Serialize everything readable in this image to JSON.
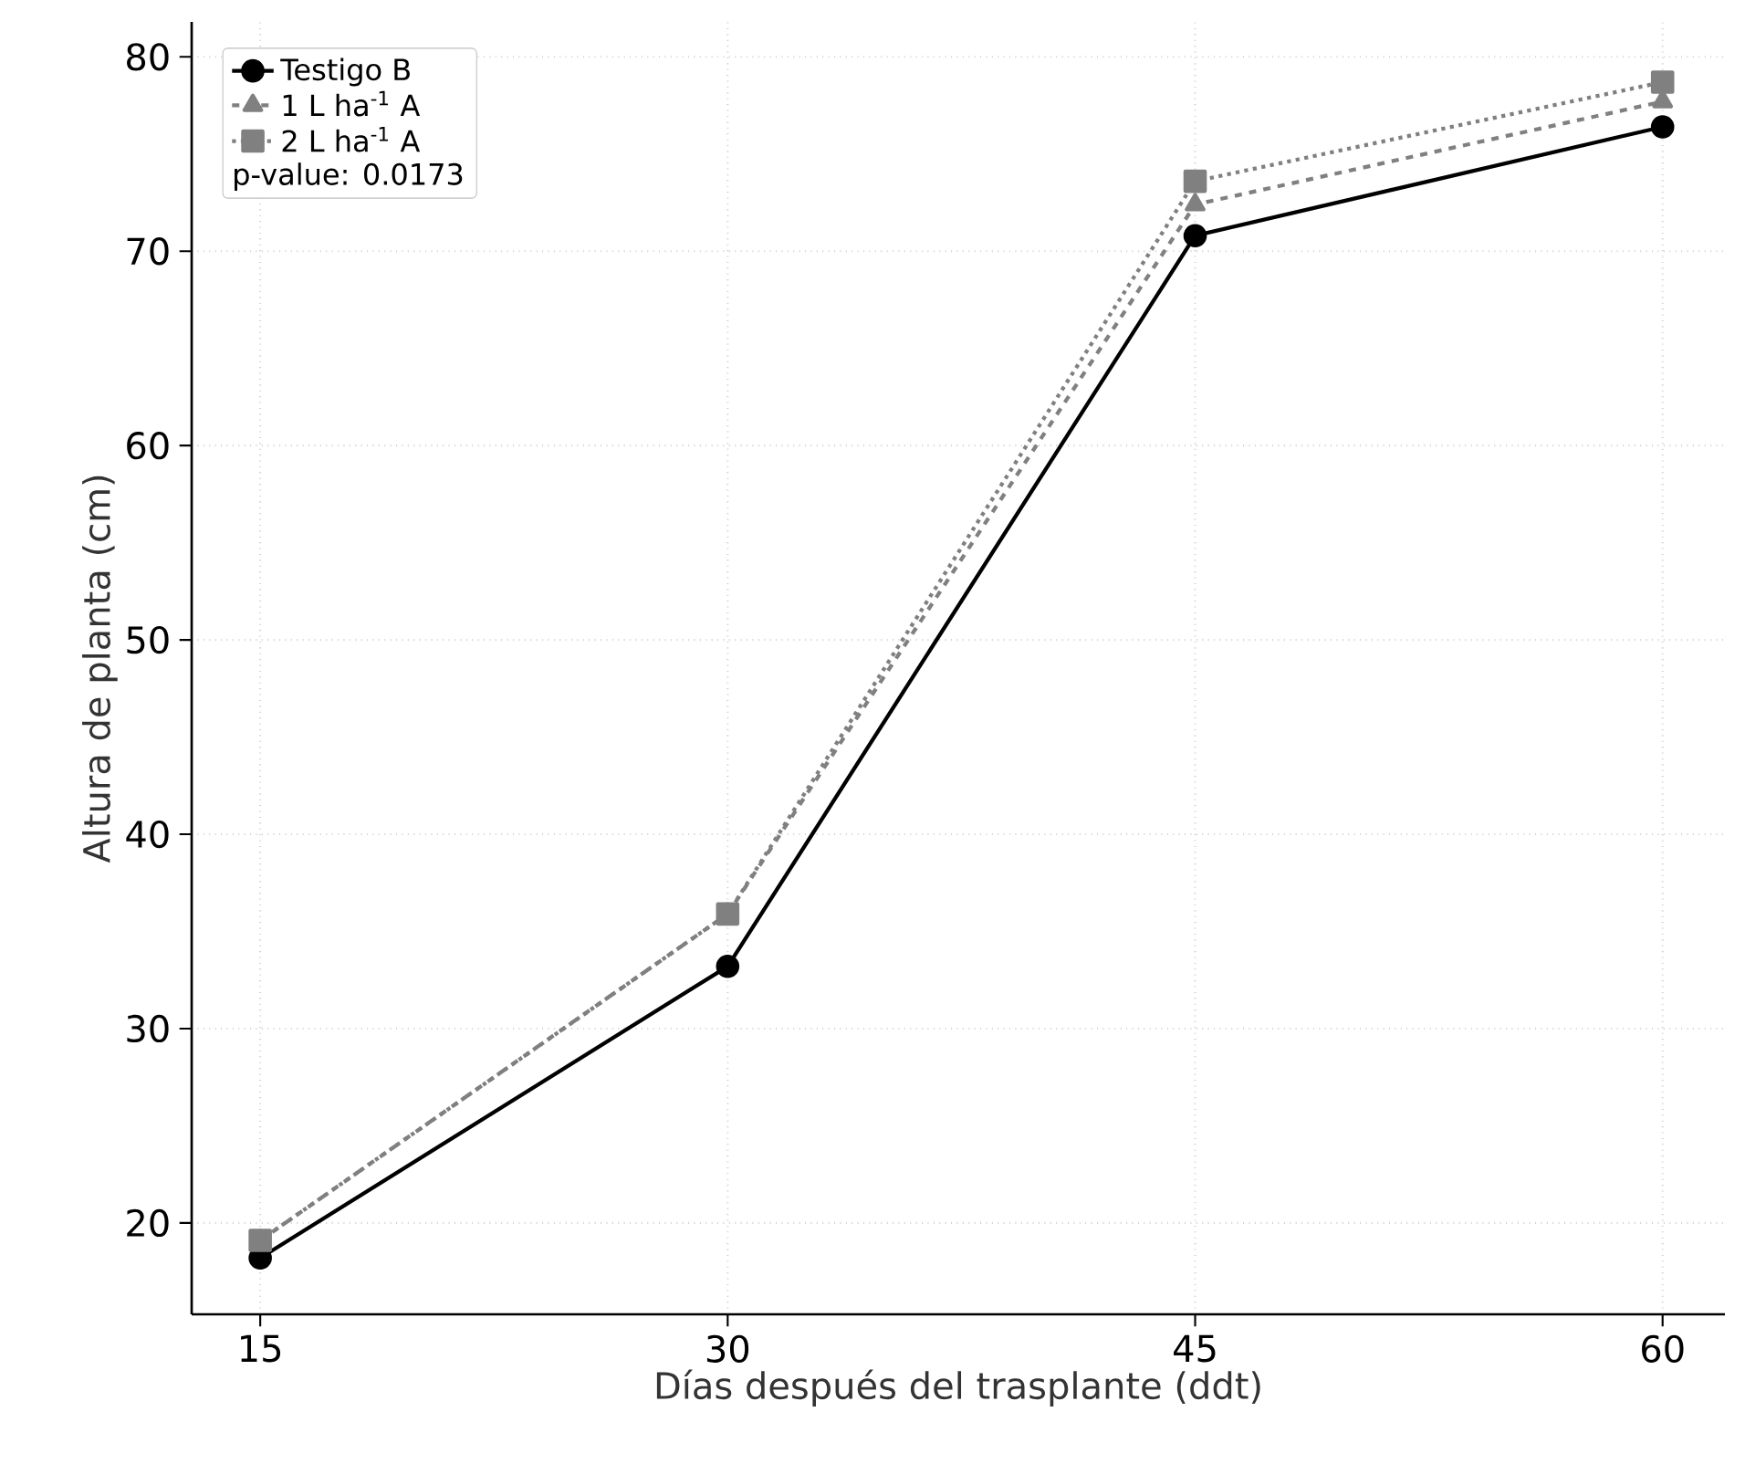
{
  "chart_data": {
    "type": "line",
    "xlabel": "Días después del trasplante (ddt)",
    "ylabel": "Altura de planta (cm)",
    "x": [
      15,
      30,
      45,
      60
    ],
    "series": [
      {
        "name": "Testigo B",
        "color": "#000000",
        "values": [
          18.2,
          33.2,
          70.8,
          76.4
        ],
        "marker": "circle",
        "line_style": "solid"
      },
      {
        "name": "1 L ha$^{-1}$ A",
        "color": "#808080",
        "values": [
          19.1,
          35.9,
          72.4,
          77.7
        ],
        "marker": "triangle",
        "line_style": "dashed"
      },
      {
        "name": "2 L ha$^{-1}$ A",
        "color": "#808080",
        "values": [
          19.1,
          35.9,
          73.6,
          78.7
        ],
        "marker": "square",
        "line_style": "dotted"
      }
    ],
    "annotations": [
      "p-value: 0.0173"
    ],
    "xlim": [
      12.8,
      62
    ],
    "ylim": [
      15.3,
      81.8
    ],
    "xticks": [
      15,
      30,
      45,
      60
    ],
    "yticks": [
      20,
      30,
      40,
      50,
      60,
      70,
      80
    ],
    "grid": true,
    "legend": "top left"
  }
}
